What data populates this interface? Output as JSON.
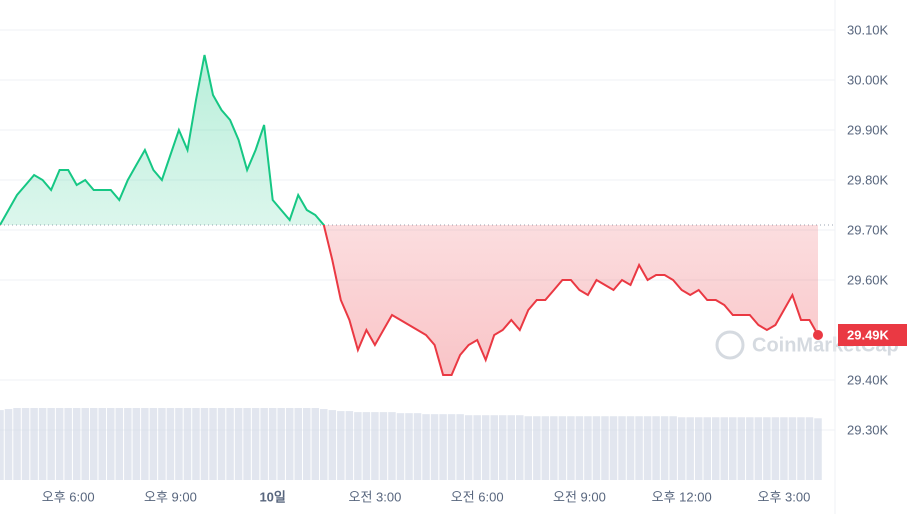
{
  "chart_data": {
    "type": "line",
    "categories": [
      null,
      null,
      null,
      null,
      null,
      null,
      null,
      null,
      "오후 6:00",
      null,
      null,
      null,
      null,
      null,
      null,
      null,
      null,
      null,
      null,
      null,
      "오후 9:00",
      null,
      null,
      null,
      null,
      null,
      null,
      null,
      null,
      null,
      null,
      null,
      "10일",
      null,
      null,
      null,
      null,
      null,
      null,
      null,
      null,
      null,
      null,
      null,
      "오전 3:00",
      null,
      null,
      null,
      null,
      null,
      null,
      null,
      null,
      null,
      null,
      null,
      "오전 6:00",
      null,
      null,
      null,
      null,
      null,
      null,
      null,
      null,
      null,
      null,
      null,
      "오전 9:00",
      null,
      null,
      null,
      null,
      null,
      null,
      null,
      null,
      null,
      null,
      null,
      "오후 12:00",
      null,
      null,
      null,
      null,
      null,
      null,
      null,
      null,
      null,
      null,
      null,
      "오후 3:00",
      null,
      null,
      null,
      null
    ],
    "values": [
      29710,
      29740,
      29770,
      29790,
      29810,
      29800,
      29780,
      29820,
      29820,
      29790,
      29800,
      29780,
      29780,
      29780,
      29760,
      29800,
      29830,
      29860,
      29820,
      29800,
      29850,
      29900,
      29860,
      29960,
      30050,
      29970,
      29940,
      29920,
      29880,
      29820,
      29860,
      29910,
      29760,
      29740,
      29720,
      29770,
      29740,
      29730,
      29710,
      29640,
      29560,
      29520,
      29460,
      29500,
      29470,
      29500,
      29530,
      29520,
      29510,
      29500,
      29490,
      29470,
      29410,
      29410,
      29450,
      29470,
      29480,
      29440,
      29490,
      29500,
      29520,
      29500,
      29540,
      29560,
      29560,
      29580,
      29600,
      29600,
      29580,
      29570,
      29600,
      29590,
      29580,
      29600,
      29590,
      29630,
      29600,
      29610,
      29610,
      29600,
      29580,
      29570,
      29580,
      29560,
      29560,
      29550,
      29530,
      29530,
      29530,
      29510,
      29500,
      29510,
      29540,
      29570,
      29520,
      29520,
      29490
    ],
    "volume": [
      68,
      69,
      70,
      70,
      70,
      70,
      70,
      70,
      70,
      70,
      70,
      70,
      70,
      70,
      70,
      70,
      70,
      70,
      70,
      70,
      70,
      70,
      70,
      70,
      70,
      70,
      70,
      70,
      70,
      70,
      70,
      70,
      70,
      70,
      70,
      70,
      70,
      70,
      69,
      68,
      67,
      67,
      66,
      66,
      66,
      66,
      66,
      65,
      65,
      65,
      64,
      64,
      64,
      64,
      64,
      63,
      63,
      63,
      63,
      63,
      63,
      63,
      62,
      62,
      62,
      62,
      62,
      62,
      62,
      62,
      62,
      62,
      62,
      62,
      62,
      62,
      62,
      62,
      62,
      62,
      61,
      61,
      61,
      61,
      61,
      61,
      61,
      61,
      61,
      61,
      61,
      61,
      61,
      61,
      61,
      61,
      60
    ],
    "up_color": "#16c784",
    "down_color": "#ea3943",
    "volume_color": "#cfd6e4",
    "baseline": 29710,
    "price_label": "29.49K",
    "watermark": "CoinMarketCap",
    "ylim": [
      29200,
      30160
    ],
    "yticks": [
      {
        "value": 30100,
        "label": "30.10K"
      },
      {
        "value": 30000,
        "label": "30.00K"
      },
      {
        "value": 29900,
        "label": "29.90K"
      },
      {
        "value": 29800,
        "label": "29.80K"
      },
      {
        "value": 29700,
        "label": "29.70K"
      },
      {
        "value": 29600,
        "label": "29.60K"
      },
      {
        "value": 29400,
        "label": "29.40K"
      },
      {
        "value": 29300,
        "label": "29.30K"
      }
    ],
    "grid": true
  }
}
